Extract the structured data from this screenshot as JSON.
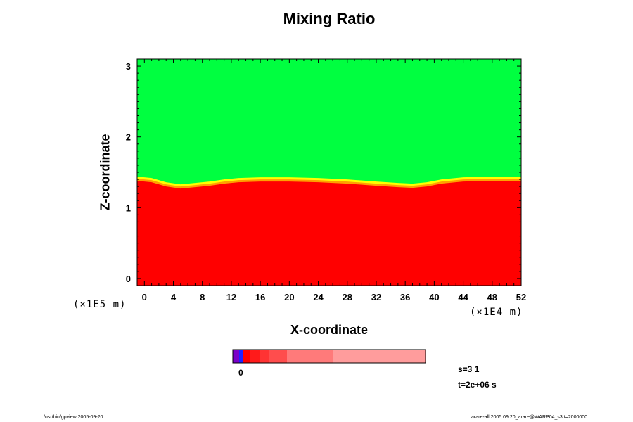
{
  "title": "Mixing Ratio",
  "xlabel": "X-coordinate",
  "ylabel": "Z-coordinate",
  "x_scale_label": "(×1E4 m)",
  "y_scale_label": "(×1E5 m)",
  "colorbar": {
    "zero_label": "0",
    "colors": [
      "#7a00c8",
      "#2020ff",
      "#ff0000",
      "#ff1a1a",
      "#ff3333",
      "#ff4d4d",
      "#ff7a7a",
      "#ff9c9c"
    ]
  },
  "info": {
    "step": "s=3 1",
    "time": "t=2e+06 s"
  },
  "footer": {
    "left": "/usr/bin/gpview 2005-09-20",
    "right": "arare-all 2005.09.20_arare@WARP04_s3 t=2000000"
  },
  "chart_data": {
    "type": "heatmap",
    "title": "Mixing Ratio",
    "xlabel": "X-coordinate",
    "ylabel": "Z-coordinate",
    "x_unit_scale": "(×1E4 m)",
    "y_unit_scale": "(×1E5 m)",
    "xlim": [
      -1,
      52
    ],
    "ylim": [
      -0.1,
      3.1
    ],
    "xticks": [
      0,
      4,
      8,
      12,
      16,
      20,
      24,
      28,
      32,
      36,
      40,
      44,
      48,
      52
    ],
    "yticks": [
      0,
      1,
      2,
      3
    ],
    "colors": {
      "upper": "#00ff40",
      "lower": "#ff0000",
      "transition": [
        "#ffff00",
        "#ffa000"
      ]
    },
    "boundary_height": [
      [
        -1,
        1.38
      ],
      [
        1,
        1.36
      ],
      [
        3,
        1.3
      ],
      [
        5,
        1.27
      ],
      [
        7,
        1.29
      ],
      [
        9,
        1.31
      ],
      [
        11,
        1.34
      ],
      [
        13,
        1.36
      ],
      [
        16,
        1.37
      ],
      [
        20,
        1.37
      ],
      [
        24,
        1.36
      ],
      [
        28,
        1.34
      ],
      [
        32,
        1.31
      ],
      [
        35,
        1.29
      ],
      [
        37,
        1.28
      ],
      [
        39,
        1.3
      ],
      [
        41,
        1.34
      ],
      [
        44,
        1.37
      ],
      [
        48,
        1.38
      ],
      [
        52,
        1.38
      ]
    ],
    "grid": false,
    "legend": "bottom"
  }
}
